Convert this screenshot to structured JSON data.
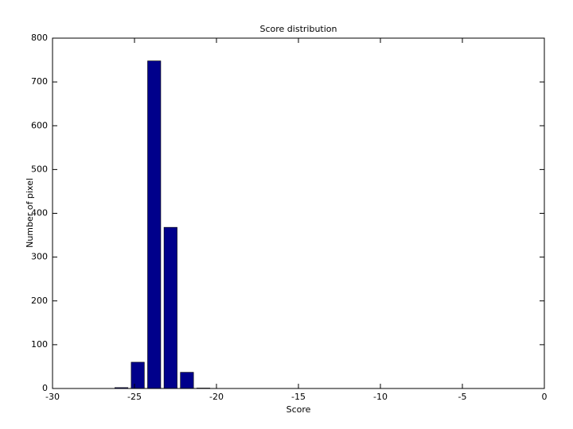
{
  "chart_data": {
    "type": "bar",
    "title": "Score distribution",
    "x_label": "Score",
    "y_label": "Number of pixel",
    "x": [
      -25.8,
      -24.8,
      -23.8,
      -22.8,
      -21.8,
      -20.8
    ],
    "values": [
      2,
      60,
      748,
      368,
      37,
      1
    ],
    "color": "#00008b",
    "xlim": [
      -30,
      0
    ],
    "xticks": [
      -30,
      -25,
      -20,
      -15,
      -10,
      -5,
      0
    ],
    "ylim": [
      0,
      800
    ],
    "yticks": [
      0,
      100,
      200,
      300,
      400,
      500,
      600,
      700,
      800
    ]
  }
}
